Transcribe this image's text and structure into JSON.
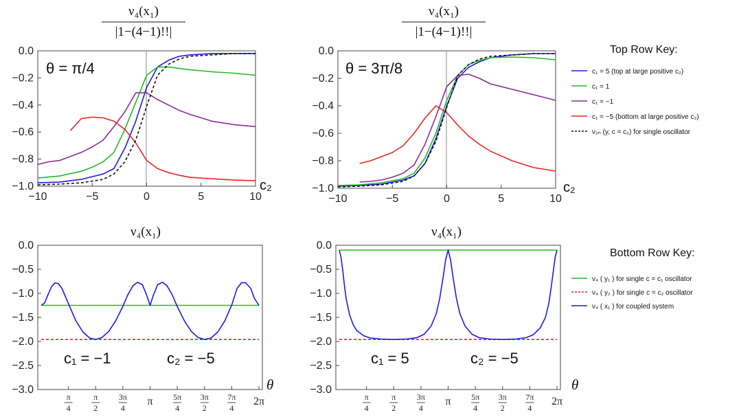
{
  "chart_data": [
    {
      "type": "line",
      "panel": "top-left",
      "title_num": "ν₄(x₁)",
      "title_den": "|1−(4−1)!!|",
      "annotation": "θ = π/4",
      "xlabel": "c₂",
      "ylabel": "",
      "xlim": [
        -10,
        10
      ],
      "ylim": [
        -1.0,
        0.0
      ],
      "xticks": [
        -10,
        -5,
        0,
        5,
        10
      ],
      "xtick_labels": [
        "−10",
        "−5",
        "0",
        "5",
        "10"
      ],
      "yticks": [
        0.0,
        -0.2,
        -0.4,
        -0.6,
        -0.8,
        -1.0
      ],
      "ytick_labels": [
        "0.0",
        "−0.2",
        "−0.4",
        "−0.6",
        "−0.8",
        "−1.0"
      ],
      "series": [
        {
          "name": "c₁ = 5 (top at large positive c₂)",
          "color": "#1a1ae6",
          "style": "solid",
          "x": [
            -10,
            -8,
            -6,
            -4,
            -3,
            -2,
            -1,
            0,
            1,
            2,
            3,
            4,
            6,
            8,
            10
          ],
          "y": [
            -0.975,
            -0.97,
            -0.95,
            -0.91,
            -0.87,
            -0.72,
            -0.52,
            -0.27,
            -0.12,
            -0.07,
            -0.04,
            -0.03,
            -0.02,
            -0.02,
            -0.02
          ]
        },
        {
          "name": "c₁ = 1",
          "color": "#22bb22",
          "style": "solid",
          "x": [
            -10,
            -8,
            -6,
            -5,
            -4,
            -3,
            -2,
            -1,
            0,
            1,
            2,
            4,
            6,
            8,
            10
          ],
          "y": [
            -0.94,
            -0.925,
            -0.89,
            -0.86,
            -0.82,
            -0.75,
            -0.58,
            -0.38,
            -0.18,
            -0.12,
            -0.12,
            -0.14,
            -0.155,
            -0.165,
            -0.18
          ]
        },
        {
          "name": "c₁ = −1",
          "color": "#8a2a9a",
          "style": "solid",
          "x": [
            -10,
            -9,
            -8,
            -7,
            -6,
            -5,
            -4,
            -3,
            -2,
            -1,
            0,
            1,
            2,
            3,
            4,
            6,
            8,
            10
          ],
          "y": [
            -0.84,
            -0.82,
            -0.81,
            -0.78,
            -0.75,
            -0.71,
            -0.66,
            -0.56,
            -0.45,
            -0.31,
            -0.31,
            -0.36,
            -0.4,
            -0.44,
            -0.47,
            -0.52,
            -0.545,
            -0.56
          ]
        },
        {
          "name": "c₁ = −5 (bottom at large positive c₂)",
          "color": "#ee2222",
          "style": "solid",
          "x": [
            -7,
            -6,
            -5,
            -4,
            -3,
            -2,
            -1,
            0,
            1,
            2,
            3,
            4,
            6,
            8,
            10
          ],
          "y": [
            -0.59,
            -0.5,
            -0.49,
            -0.495,
            -0.52,
            -0.58,
            -0.68,
            -0.81,
            -0.87,
            -0.9,
            -0.92,
            -0.935,
            -0.945,
            -0.955,
            -0.96
          ]
        },
        {
          "name": "ν₂ₙ(y, c = c₂) for single oscillator",
          "color": "#111111",
          "style": "dashed",
          "x": [
            -10,
            -8,
            -6,
            -4,
            -3,
            -2,
            -1,
            0,
            1,
            2,
            3,
            4,
            6,
            8,
            10
          ],
          "y": [
            -0.99,
            -0.985,
            -0.975,
            -0.95,
            -0.91,
            -0.82,
            -0.66,
            -0.41,
            -0.18,
            -0.1,
            -0.06,
            -0.04,
            -0.03,
            -0.02,
            -0.02
          ]
        }
      ]
    },
    {
      "type": "line",
      "panel": "top-right",
      "title_num": "ν₄(x₁)",
      "title_den": "|1−(4−1)!!|",
      "annotation": "θ = 3π/8",
      "xlabel": "c₂",
      "ylabel": "",
      "xlim": [
        -10,
        10
      ],
      "ylim": [
        -1.0,
        0.0
      ],
      "xticks": [
        -10,
        -5,
        0,
        5,
        10
      ],
      "xtick_labels": [
        "−10",
        "−5",
        "0",
        "5",
        "10"
      ],
      "yticks": [
        0.0,
        -0.2,
        -0.4,
        -0.6,
        -0.8,
        -1.0
      ],
      "ytick_labels": [
        "0.0",
        "−0.2",
        "−0.4",
        "−0.6",
        "−0.8",
        "−1.0"
      ],
      "series": [
        {
          "name": "c₁ = 5",
          "color": "#1a1ae6",
          "style": "solid",
          "x": [
            -10,
            -8,
            -6,
            -4,
            -3,
            -2,
            -1,
            0,
            1,
            2,
            3,
            4,
            6,
            8,
            10
          ],
          "y": [
            -0.985,
            -0.98,
            -0.97,
            -0.94,
            -0.91,
            -0.82,
            -0.64,
            -0.4,
            -0.2,
            -0.12,
            -0.08,
            -0.05,
            -0.03,
            -0.02,
            -0.02
          ]
        },
        {
          "name": "c₁ = 1",
          "color": "#22bb22",
          "style": "solid",
          "x": [
            -10,
            -8,
            -6,
            -4,
            -3,
            -2,
            -1,
            0,
            1,
            2,
            3,
            4,
            6,
            8,
            10
          ],
          "y": [
            -0.98,
            -0.975,
            -0.96,
            -0.93,
            -0.89,
            -0.78,
            -0.6,
            -0.36,
            -0.18,
            -0.1,
            -0.07,
            -0.05,
            -0.045,
            -0.05,
            -0.065
          ]
        },
        {
          "name": "c₁ = −1",
          "color": "#8a2a9a",
          "style": "solid",
          "x": [
            -8,
            -7,
            -6,
            -5,
            -4,
            -3,
            -2,
            -1,
            0,
            1,
            2,
            3,
            4,
            6,
            8,
            10
          ],
          "y": [
            -0.955,
            -0.95,
            -0.94,
            -0.92,
            -0.89,
            -0.83,
            -0.68,
            -0.48,
            -0.26,
            -0.18,
            -0.17,
            -0.2,
            -0.24,
            -0.28,
            -0.32,
            -0.36
          ]
        },
        {
          "name": "c₁ = −5",
          "color": "#ee2222",
          "style": "solid",
          "x": [
            -8,
            -7,
            -6,
            -5,
            -4,
            -3,
            -2,
            -1,
            0,
            1,
            2,
            3,
            4,
            6,
            8,
            10
          ],
          "y": [
            -0.82,
            -0.8,
            -0.77,
            -0.74,
            -0.69,
            -0.6,
            -0.49,
            -0.4,
            -0.45,
            -0.54,
            -0.62,
            -0.68,
            -0.73,
            -0.8,
            -0.85,
            -0.875
          ]
        },
        {
          "name": "ν₂ₙ(y, c = c₂)",
          "color": "#111111",
          "style": "dashed",
          "x": [
            -10,
            -8,
            -6,
            -4,
            -3,
            -2,
            -1,
            0,
            1,
            2,
            3,
            4,
            6,
            8,
            10
          ],
          "y": [
            -0.99,
            -0.985,
            -0.975,
            -0.95,
            -0.91,
            -0.82,
            -0.66,
            -0.41,
            -0.18,
            -0.1,
            -0.06,
            -0.04,
            -0.03,
            -0.02,
            -0.02
          ]
        }
      ]
    },
    {
      "type": "line",
      "panel": "bottom-left",
      "title": "ν₄(x₁)",
      "annotation_c1": "c₁ = −1",
      "annotation_c2": "c₂ = −5",
      "xlabel": "θ",
      "ylabel": "",
      "xlim": [
        0,
        6.2832
      ],
      "ylim": [
        -3.0,
        0.0
      ],
      "xticks": [
        0.7854,
        1.5708,
        2.3562,
        3.1416,
        3.927,
        4.7124,
        5.4978,
        6.2832
      ],
      "xtick_labels": [
        [
          "π",
          "4"
        ],
        [
          "π",
          "2"
        ],
        [
          "3π",
          "4"
        ],
        [
          "π"
        ],
        [
          "5π",
          "4"
        ],
        [
          "3π",
          "2"
        ],
        [
          "7π",
          "4"
        ],
        [
          "2π"
        ]
      ],
      "yticks": [
        0.0,
        -0.5,
        -1.0,
        -1.5,
        -2.0,
        -2.5,
        -3.0
      ],
      "ytick_labels": [
        "0.0",
        "−0.5",
        "−1.0",
        "−1.5",
        "−2.0",
        "−2.5",
        "−3.0"
      ],
      "series": [
        {
          "name": "ν₄(y₁) for single c = c₁ oscillator",
          "color": "#22bb22",
          "style": "solid",
          "x": [
            0,
            6.2832
          ],
          "y": [
            -1.25,
            -1.25
          ]
        },
        {
          "name": "ν₄(y₂) for single c = c₂ oscillator",
          "color": "#ee2222",
          "style": "dashed",
          "x": [
            0,
            6.2832
          ],
          "y": [
            -1.96,
            -1.96
          ]
        },
        {
          "name": "ν₄(x₁) for coupled system",
          "color": "#1a1ae6",
          "style": "solid",
          "x": [
            0,
            0.1,
            0.2,
            0.3,
            0.4,
            0.5,
            0.6,
            0.8,
            1.0,
            1.2,
            1.4,
            1.5708,
            1.75,
            1.95,
            2.15,
            2.35,
            2.5,
            2.65,
            2.78,
            2.92,
            3.05,
            3.1416,
            3.23,
            3.36,
            3.5,
            3.63,
            3.78,
            3.93,
            4.13,
            4.33,
            4.53,
            4.7124,
            4.9,
            5.1,
            5.3,
            5.5,
            5.65,
            5.78,
            5.9,
            6.05,
            6.15,
            6.2832
          ],
          "y": [
            -1.25,
            -1.2,
            -1.02,
            -0.86,
            -0.78,
            -0.8,
            -0.9,
            -1.24,
            -1.57,
            -1.8,
            -1.93,
            -1.96,
            -1.92,
            -1.79,
            -1.57,
            -1.28,
            -1.03,
            -0.84,
            -0.77,
            -0.82,
            -1.05,
            -1.25,
            -1.05,
            -0.82,
            -0.77,
            -0.84,
            -1.03,
            -1.28,
            -1.57,
            -1.79,
            -1.92,
            -1.96,
            -1.93,
            -1.8,
            -1.57,
            -1.24,
            -0.9,
            -0.78,
            -0.78,
            -0.9,
            -1.1,
            -1.25
          ]
        }
      ]
    },
    {
      "type": "line",
      "panel": "bottom-right",
      "title": "ν₄(x₁)",
      "annotation_c1": "c₁ = 5",
      "annotation_c2": "c₂ = −5",
      "xlabel": "θ",
      "ylabel": "",
      "xlim": [
        0,
        6.2832
      ],
      "ylim": [
        -3.0,
        0.0
      ],
      "xticks": [
        0.7854,
        1.5708,
        2.3562,
        3.1416,
        3.927,
        4.7124,
        5.4978,
        6.2832
      ],
      "xtick_labels": [
        [
          "π",
          "4"
        ],
        [
          "π",
          "2"
        ],
        [
          "3π",
          "4"
        ],
        [
          "π"
        ],
        [
          "5π",
          "4"
        ],
        [
          "3π",
          "2"
        ],
        [
          "7π",
          "4"
        ],
        [
          "2π"
        ]
      ],
      "yticks": [
        0.0,
        -0.5,
        -1.0,
        -1.5,
        -2.0,
        -2.5,
        -3.0
      ],
      "ytick_labels": [
        "0.0",
        "−0.5",
        "−1.0",
        "−1.5",
        "−2.0",
        "−2.5",
        "−3.0"
      ],
      "series": [
        {
          "name": "ν₄(y₁) for single c = c₁ oscillator",
          "color": "#22bb22",
          "style": "solid",
          "x": [
            0,
            6.2832
          ],
          "y": [
            -0.1,
            -0.1
          ]
        },
        {
          "name": "ν₄(y₂) for single c = c₂ oscillator",
          "color": "#ee2222",
          "style": "dashed",
          "x": [
            0,
            6.2832
          ],
          "y": [
            -1.96,
            -1.96
          ]
        },
        {
          "name": "ν₄(x₁) for coupled system",
          "color": "#1a1ae6",
          "style": "solid",
          "x": [
            0,
            0.05,
            0.1,
            0.15,
            0.2,
            0.3,
            0.4,
            0.5,
            0.7,
            0.9,
            1.2,
            1.5708,
            1.95,
            2.25,
            2.45,
            2.65,
            2.8,
            2.9,
            3.0,
            3.07,
            3.1416,
            3.21,
            3.28,
            3.38,
            3.48,
            3.63,
            3.83,
            4.03,
            4.33,
            4.7124,
            5.1,
            5.4,
            5.6,
            5.8,
            5.95,
            6.05,
            6.12,
            6.18,
            6.23,
            6.2832
          ],
          "y": [
            -0.1,
            -0.25,
            -0.52,
            -0.85,
            -1.12,
            -1.45,
            -1.65,
            -1.77,
            -1.88,
            -1.93,
            -1.95,
            -1.96,
            -1.95,
            -1.92,
            -1.85,
            -1.68,
            -1.42,
            -1.1,
            -0.65,
            -0.3,
            -0.1,
            -0.3,
            -0.65,
            -1.1,
            -1.42,
            -1.68,
            -1.85,
            -1.92,
            -1.95,
            -1.96,
            -1.95,
            -1.92,
            -1.86,
            -1.72,
            -1.5,
            -1.2,
            -0.85,
            -0.52,
            -0.25,
            -0.1
          ]
        }
      ]
    }
  ],
  "keys": {
    "top_title": "Top Row Key:",
    "top_items": [
      {
        "label": "c₁ = 5 (top at large positive c₂)",
        "color": "#1a1ae6",
        "style": "solid"
      },
      {
        "label": "c₁ = 1",
        "color": "#22bb22",
        "style": "solid"
      },
      {
        "label": "c₁ = −1",
        "color": "#8a2a9a",
        "style": "solid"
      },
      {
        "label": "c₁ = −5 (bottom at large positive c₂)",
        "color": "#ee2222",
        "style": "solid"
      },
      {
        "label": "ν₂ₙ (y, c = c₂) for single oscillator",
        "color": "#111111",
        "style": "dashed"
      }
    ],
    "bottom_title": "Bottom Row Key:",
    "bottom_items": [
      {
        "label": "ν₄ ( y₁ ) for single c = c₁ oscillator",
        "color": "#22bb22",
        "style": "solid"
      },
      {
        "label": "ν₄ ( y₂ ) for single c = c₂ oscillator",
        "color": "#ee2222",
        "style": "dashed"
      },
      {
        "label": "ν₄ ( x₁ ) for coupled system",
        "color": "#1a1ae6",
        "style": "solid"
      }
    ]
  }
}
